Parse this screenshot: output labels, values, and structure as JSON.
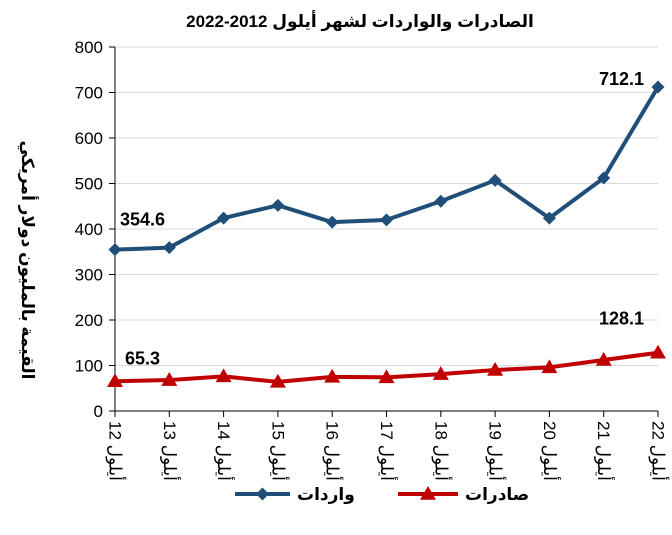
{
  "chart_data": {
    "type": "line",
    "title": "الصادرات والواردات لشهر أيلول 2012-2022",
    "ylabel": "القيمة بالمليون دولار أمريكي",
    "xlabel": "",
    "ylim": [
      0,
      800
    ],
    "yticks": [
      0,
      100,
      200,
      300,
      400,
      500,
      600,
      700,
      800
    ],
    "grid": true,
    "legend_position": "bottom",
    "categories": [
      "أيلول 12",
      "أيلول 13",
      "أيلول 14",
      "أيلول 15",
      "أيلول 16",
      "أيلول 17",
      "أيلول 18",
      "أيلول 19",
      "أيلول 20",
      "أيلول 21",
      "أيلول 22"
    ],
    "series": [
      {
        "name": "واردات",
        "color": "#1F4E79",
        "marker": "diamond",
        "values": [
          354.6,
          359,
          424,
          452,
          415,
          420,
          461,
          507,
          424,
          512,
          712.1
        ],
        "data_labels": [
          {
            "index": 0,
            "text": "354.6"
          },
          {
            "index": 10,
            "text": "712.1"
          }
        ]
      },
      {
        "name": "صادرات",
        "color": "#C00000",
        "marker": "triangle",
        "values": [
          65.3,
          68,
          76,
          64,
          75,
          74,
          81,
          90,
          96,
          112,
          128.1
        ],
        "data_labels": [
          {
            "index": 0,
            "text": "65.3"
          },
          {
            "index": 10,
            "text": "128.1"
          }
        ]
      }
    ]
  }
}
